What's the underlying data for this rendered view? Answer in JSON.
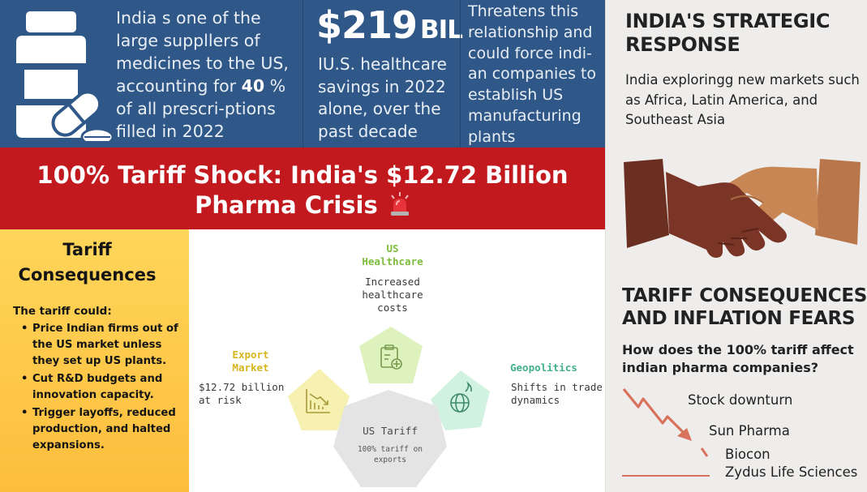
{
  "top_facts": {
    "fact1": {
      "text_before": "India s one of the large suppllers of medicines to the US, accounting for ",
      "highlight": "40",
      "text_after": " % of all prescri-ptions filled in 2022"
    },
    "fact2": {
      "big_number": "$219",
      "big_unit": "BIL",
      "text": "IU.S. healthcare savings in 2022 alone, over the past decade"
    },
    "fact3": {
      "text": "Threatens this relationship and could force indi-an companies to establish US manufacturing plants"
    }
  },
  "banner": {
    "line1": "100% Tariff Shock: India's $12.72 Billion",
    "line2": "Pharma Crisis"
  },
  "consequences": {
    "heading_line1": "Tariff",
    "heading_line2": "Consequences",
    "intro": "The tariff could:",
    "items": [
      "Price Indian firms out of the US market unless they set up US plants.",
      "Cut R&D budgets and innovation capacity.",
      "Trigger layoffs, reduced production, and halted expansions."
    ]
  },
  "diagram": {
    "us_healthcare": {
      "title_line1": "US",
      "title_line2": "Healthcare",
      "desc_line1": "Increased",
      "desc_line2": "healthcare",
      "desc_line3": "costs",
      "color": "#7cbd3b"
    },
    "export_market": {
      "title_line1": "Export",
      "title_line2": "Market",
      "desc_line1": "$12.72 billion",
      "desc_line2": "at risk",
      "color": "#d7b61b"
    },
    "geopolitics": {
      "title": "Geopolitics",
      "desc_line1": "Shifts in trade",
      "desc_line2": "dynamics",
      "color": "#43b08a"
    },
    "us_tariff": {
      "title": "US Tariff",
      "desc_line1": "100% tariff on",
      "desc_line2": "exports"
    }
  },
  "strategy": {
    "heading_line1": "INDIA'S STRATEGIC",
    "heading_line2": "RESPONSE",
    "text": "India exploringg new markets such as Africa, Latin America, and Southeast Asia"
  },
  "inflation": {
    "heading_line1": "TARIFF CONSEQUENCES",
    "heading_line2": "AND INFLATION FEARS",
    "question": "How does the 100% tariff affect indian pharma companies?",
    "companies": [
      "Stock downturn",
      "Sun Pharma",
      "Biocon",
      "Zydus Life Sciences"
    ]
  },
  "colors": {
    "blue_band": "#2f5888",
    "red_banner": "#c1191e",
    "yellow_panel": "#fdc64a",
    "right_panel": "#eeedeb",
    "trend_arrow": "#d9725c"
  }
}
